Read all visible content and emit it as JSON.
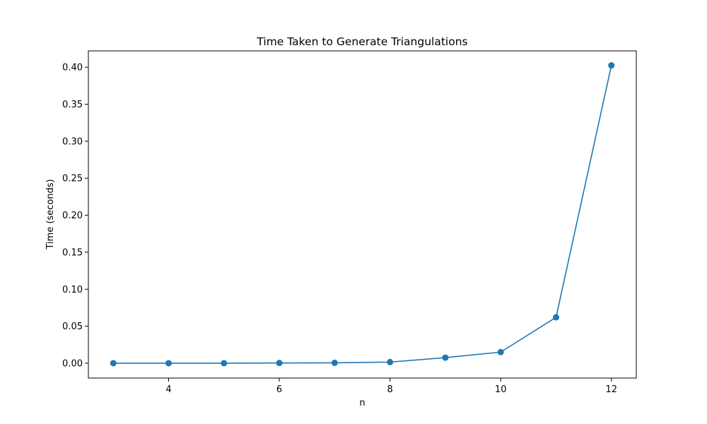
{
  "chart_data": {
    "type": "line",
    "title": "Time Taken to Generate Triangulations",
    "xlabel": "n",
    "ylabel": "Time (seconds)",
    "xlim": [
      2.55,
      12.45
    ],
    "ylim": [
      -0.0201,
      0.4221
    ],
    "x_ticks": [
      4,
      6,
      8,
      10,
      12
    ],
    "x_tick_labels": [
      "4",
      "6",
      "8",
      "10",
      "12"
    ],
    "y_ticks": [
      0.0,
      0.05,
      0.1,
      0.15,
      0.2,
      0.25,
      0.3,
      0.35,
      0.4
    ],
    "y_tick_labels": [
      "0.00",
      "0.05",
      "0.10",
      "0.15",
      "0.20",
      "0.25",
      "0.30",
      "0.35",
      "0.40"
    ],
    "grid": false,
    "line_color": "#1f77b4",
    "marker": "circle",
    "series": [
      {
        "x": [
          3,
          4,
          5,
          6,
          7,
          8,
          9,
          10,
          11,
          12
        ],
        "y": [
          0.0,
          0.0,
          0.0,
          0.0003,
          0.0005,
          0.0015,
          0.0075,
          0.015,
          0.062,
          0.4025
        ]
      }
    ]
  }
}
